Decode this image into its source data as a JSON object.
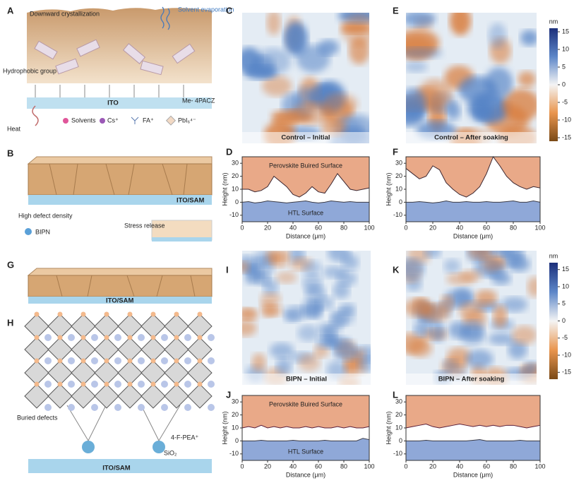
{
  "figure": {
    "panels": [
      "A",
      "B",
      "C",
      "D",
      "E",
      "F",
      "G",
      "H",
      "I",
      "J",
      "K",
      "L"
    ],
    "schematic_a": {
      "title": "Downward crystallization",
      "evaporation": "Solvent evaporation",
      "group": "Hydrophobic group",
      "substrate": "ITO",
      "sam": "Me- 4PACZ",
      "heat": "Heat",
      "legend": [
        "Solvents",
        "Cs⁺",
        "FA⁺",
        "PbI₆⁴⁻"
      ]
    },
    "schematic_b": {
      "substrate": "ITO/SAM",
      "defects": "High defect density",
      "additive": "BIPN",
      "release": "Stress release"
    },
    "schematic_g": {
      "substrate": "ITO/SAM"
    },
    "schematic_h": {
      "defects": "Buried defects",
      "cation": "4-F-PEA⁺",
      "oxide": "SiO₂",
      "substrate": "ITO/SAM"
    },
    "maps": [
      "Control – Initial",
      "Control – After soaking",
      "BIPN – Initial",
      "BIPN – After soaking"
    ],
    "colorbars": [
      {
        "unit": "nm",
        "lim": [
          -16,
          16
        ],
        "ticks": [
          15,
          10,
          5,
          0,
          -5,
          -10,
          -15
        ]
      },
      {
        "unit": "nm",
        "lim": [
          -17,
          17
        ],
        "ticks": [
          15,
          10,
          5,
          0,
          -5,
          -10,
          -15
        ]
      }
    ]
  },
  "chart_data": [
    {
      "type": "line",
      "xlabel": "Distance (μm)",
      "ylabel": "Height (nm)",
      "annotations": [
        "Perovskite Buired Surface",
        "HTL Surface"
      ],
      "x": [
        0,
        5,
        10,
        15,
        20,
        25,
        30,
        35,
        40,
        45,
        50,
        55,
        60,
        65,
        70,
        75,
        80,
        85,
        90,
        95,
        100
      ],
      "series": [
        {
          "color": "#3b2630",
          "fill": "#e9a988",
          "values": [
            10,
            10,
            8,
            9,
            12,
            20,
            16,
            12,
            6,
            4,
            7,
            12,
            8,
            7,
            14,
            22,
            16,
            10,
            9,
            10,
            11
          ]
        },
        {
          "color": "#3b3b46",
          "fill": "#8fa8d8",
          "values": [
            0,
            0.5,
            -0.5,
            0,
            1,
            0.5,
            0,
            -0.5,
            0,
            0.5,
            1,
            0,
            -0.5,
            0,
            1,
            0.5,
            0,
            0.5,
            0,
            0,
            0
          ]
        }
      ],
      "xlim": [
        0,
        100
      ],
      "xticks": [
        0,
        20,
        40,
        60,
        80,
        100
      ],
      "ylim": [
        -15,
        35
      ],
      "yticks": [
        -10,
        0,
        10,
        20,
        30
      ]
    },
    {
      "type": "line",
      "xlabel": "Distance (μm)",
      "ylabel": "Height (nm)",
      "x": [
        0,
        5,
        10,
        15,
        20,
        25,
        30,
        35,
        40,
        45,
        50,
        55,
        60,
        65,
        70,
        75,
        80,
        85,
        90,
        95,
        100
      ],
      "series": [
        {
          "color": "#3b2630",
          "fill": "#e9a988",
          "values": [
            26,
            22,
            18,
            20,
            28,
            25,
            15,
            10,
            6,
            4,
            7,
            12,
            22,
            35,
            28,
            20,
            15,
            12,
            10,
            12,
            11
          ]
        },
        {
          "color": "#3b3b46",
          "fill": "#8fa8d8",
          "values": [
            0,
            0,
            0.5,
            0,
            -0.5,
            0,
            1,
            0,
            0,
            0.5,
            0,
            0,
            0.5,
            0,
            0,
            0.5,
            1,
            0,
            0,
            1,
            0
          ]
        }
      ],
      "xlim": [
        0,
        100
      ],
      "xticks": [
        0,
        20,
        40,
        60,
        80,
        100
      ],
      "ylim": [
        -15,
        35
      ],
      "yticks": [
        -10,
        0,
        10,
        20,
        30
      ]
    },
    {
      "type": "line",
      "xlabel": "Distance (μm)",
      "ylabel": "Height (nm)",
      "annotations": [
        "Perovskite Buired Surface",
        "HTL Surface"
      ],
      "x": [
        0,
        5,
        10,
        15,
        20,
        25,
        30,
        35,
        40,
        45,
        50,
        55,
        60,
        65,
        70,
        75,
        80,
        85,
        90,
        95,
        100
      ],
      "series": [
        {
          "color": "#5a1f3a",
          "fill": "#e9a988",
          "values": [
            10,
            11,
            10,
            12,
            10,
            11,
            10,
            11,
            10,
            10,
            11,
            10,
            11,
            10,
            10,
            11,
            10,
            11,
            10,
            10,
            11
          ]
        },
        {
          "color": "#3b3b46",
          "fill": "#8fa8d8",
          "values": [
            0,
            0,
            0,
            0.5,
            0,
            0,
            0,
            0,
            0.5,
            0,
            0,
            0,
            0,
            0.5,
            0,
            0,
            0,
            0,
            0,
            2,
            1
          ]
        }
      ],
      "xlim": [
        0,
        100
      ],
      "xticks": [
        0,
        20,
        40,
        60,
        80,
        100
      ],
      "ylim": [
        -15,
        35
      ],
      "yticks": [
        -10,
        0,
        10,
        20,
        30
      ]
    },
    {
      "type": "line",
      "xlabel": "Distance (μm)",
      "ylabel": "Height (nm)",
      "x": [
        0,
        5,
        10,
        15,
        20,
        25,
        30,
        35,
        40,
        45,
        50,
        55,
        60,
        65,
        70,
        75,
        80,
        85,
        90,
        95,
        100
      ],
      "series": [
        {
          "color": "#5a1f3a",
          "fill": "#e9a988",
          "values": [
            10,
            11,
            12,
            13,
            11,
            10,
            11,
            12,
            13,
            12,
            11,
            12,
            11,
            12,
            11,
            12,
            12,
            11,
            10,
            11,
            12
          ]
        },
        {
          "color": "#3b3b46",
          "fill": "#8fa8d8",
          "values": [
            0,
            0,
            0,
            0.5,
            0,
            0,
            0,
            0,
            0,
            0,
            0.5,
            1,
            0,
            0,
            0,
            0,
            0,
            0.5,
            0,
            0,
            0
          ]
        }
      ],
      "xlim": [
        0,
        100
      ],
      "xticks": [
        0,
        20,
        40,
        60,
        80,
        100
      ],
      "ylim": [
        -15,
        35
      ],
      "yticks": [
        -10,
        0,
        10,
        20,
        30
      ]
    }
  ]
}
